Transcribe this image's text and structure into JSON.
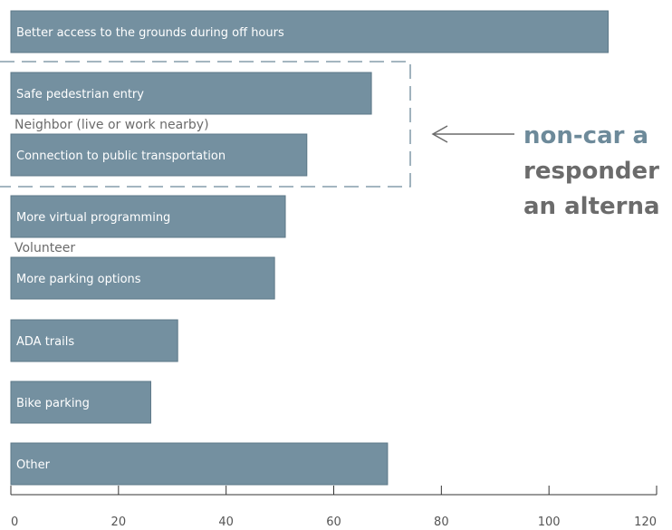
{
  "chart_data": {
    "type": "bar",
    "orientation": "horizontal",
    "categories": [
      "Better access to the grounds during off hours",
      "Safe pedestrian entry",
      "Connection to public transportation",
      "More virtual programming",
      "More parking options",
      "ADA trails",
      "Bike parking",
      "Other"
    ],
    "values": [
      111,
      67,
      55,
      51,
      49,
      31,
      26,
      70
    ],
    "group_labels": [
      {
        "text": "Neighbor (live or work nearby)",
        "after_index": 1
      },
      {
        "text": "Volunteer",
        "after_index": 3
      }
    ],
    "xticks": [
      "0",
      "20",
      "40",
      "60",
      "80",
      "100",
      "120"
    ],
    "xlim": [
      0,
      120
    ],
    "title": "",
    "xlabel": "",
    "ylabel": "",
    "grid": false,
    "highlight": {
      "from_index": 1,
      "to_index": 2,
      "style": "dashed-box"
    },
    "annotation": {
      "lines": [
        "non-car a",
        "responder",
        "an alterna"
      ],
      "first_line_color": "#6d8a9a",
      "other_lines_color": "#6b6b6b"
    },
    "colors": {
      "bar": "#7490a0",
      "bar_stroke": "#5d7888",
      "highlight_box": "#6d8a9a",
      "axis": "#333333",
      "arrow": "#6b6b6b"
    }
  }
}
